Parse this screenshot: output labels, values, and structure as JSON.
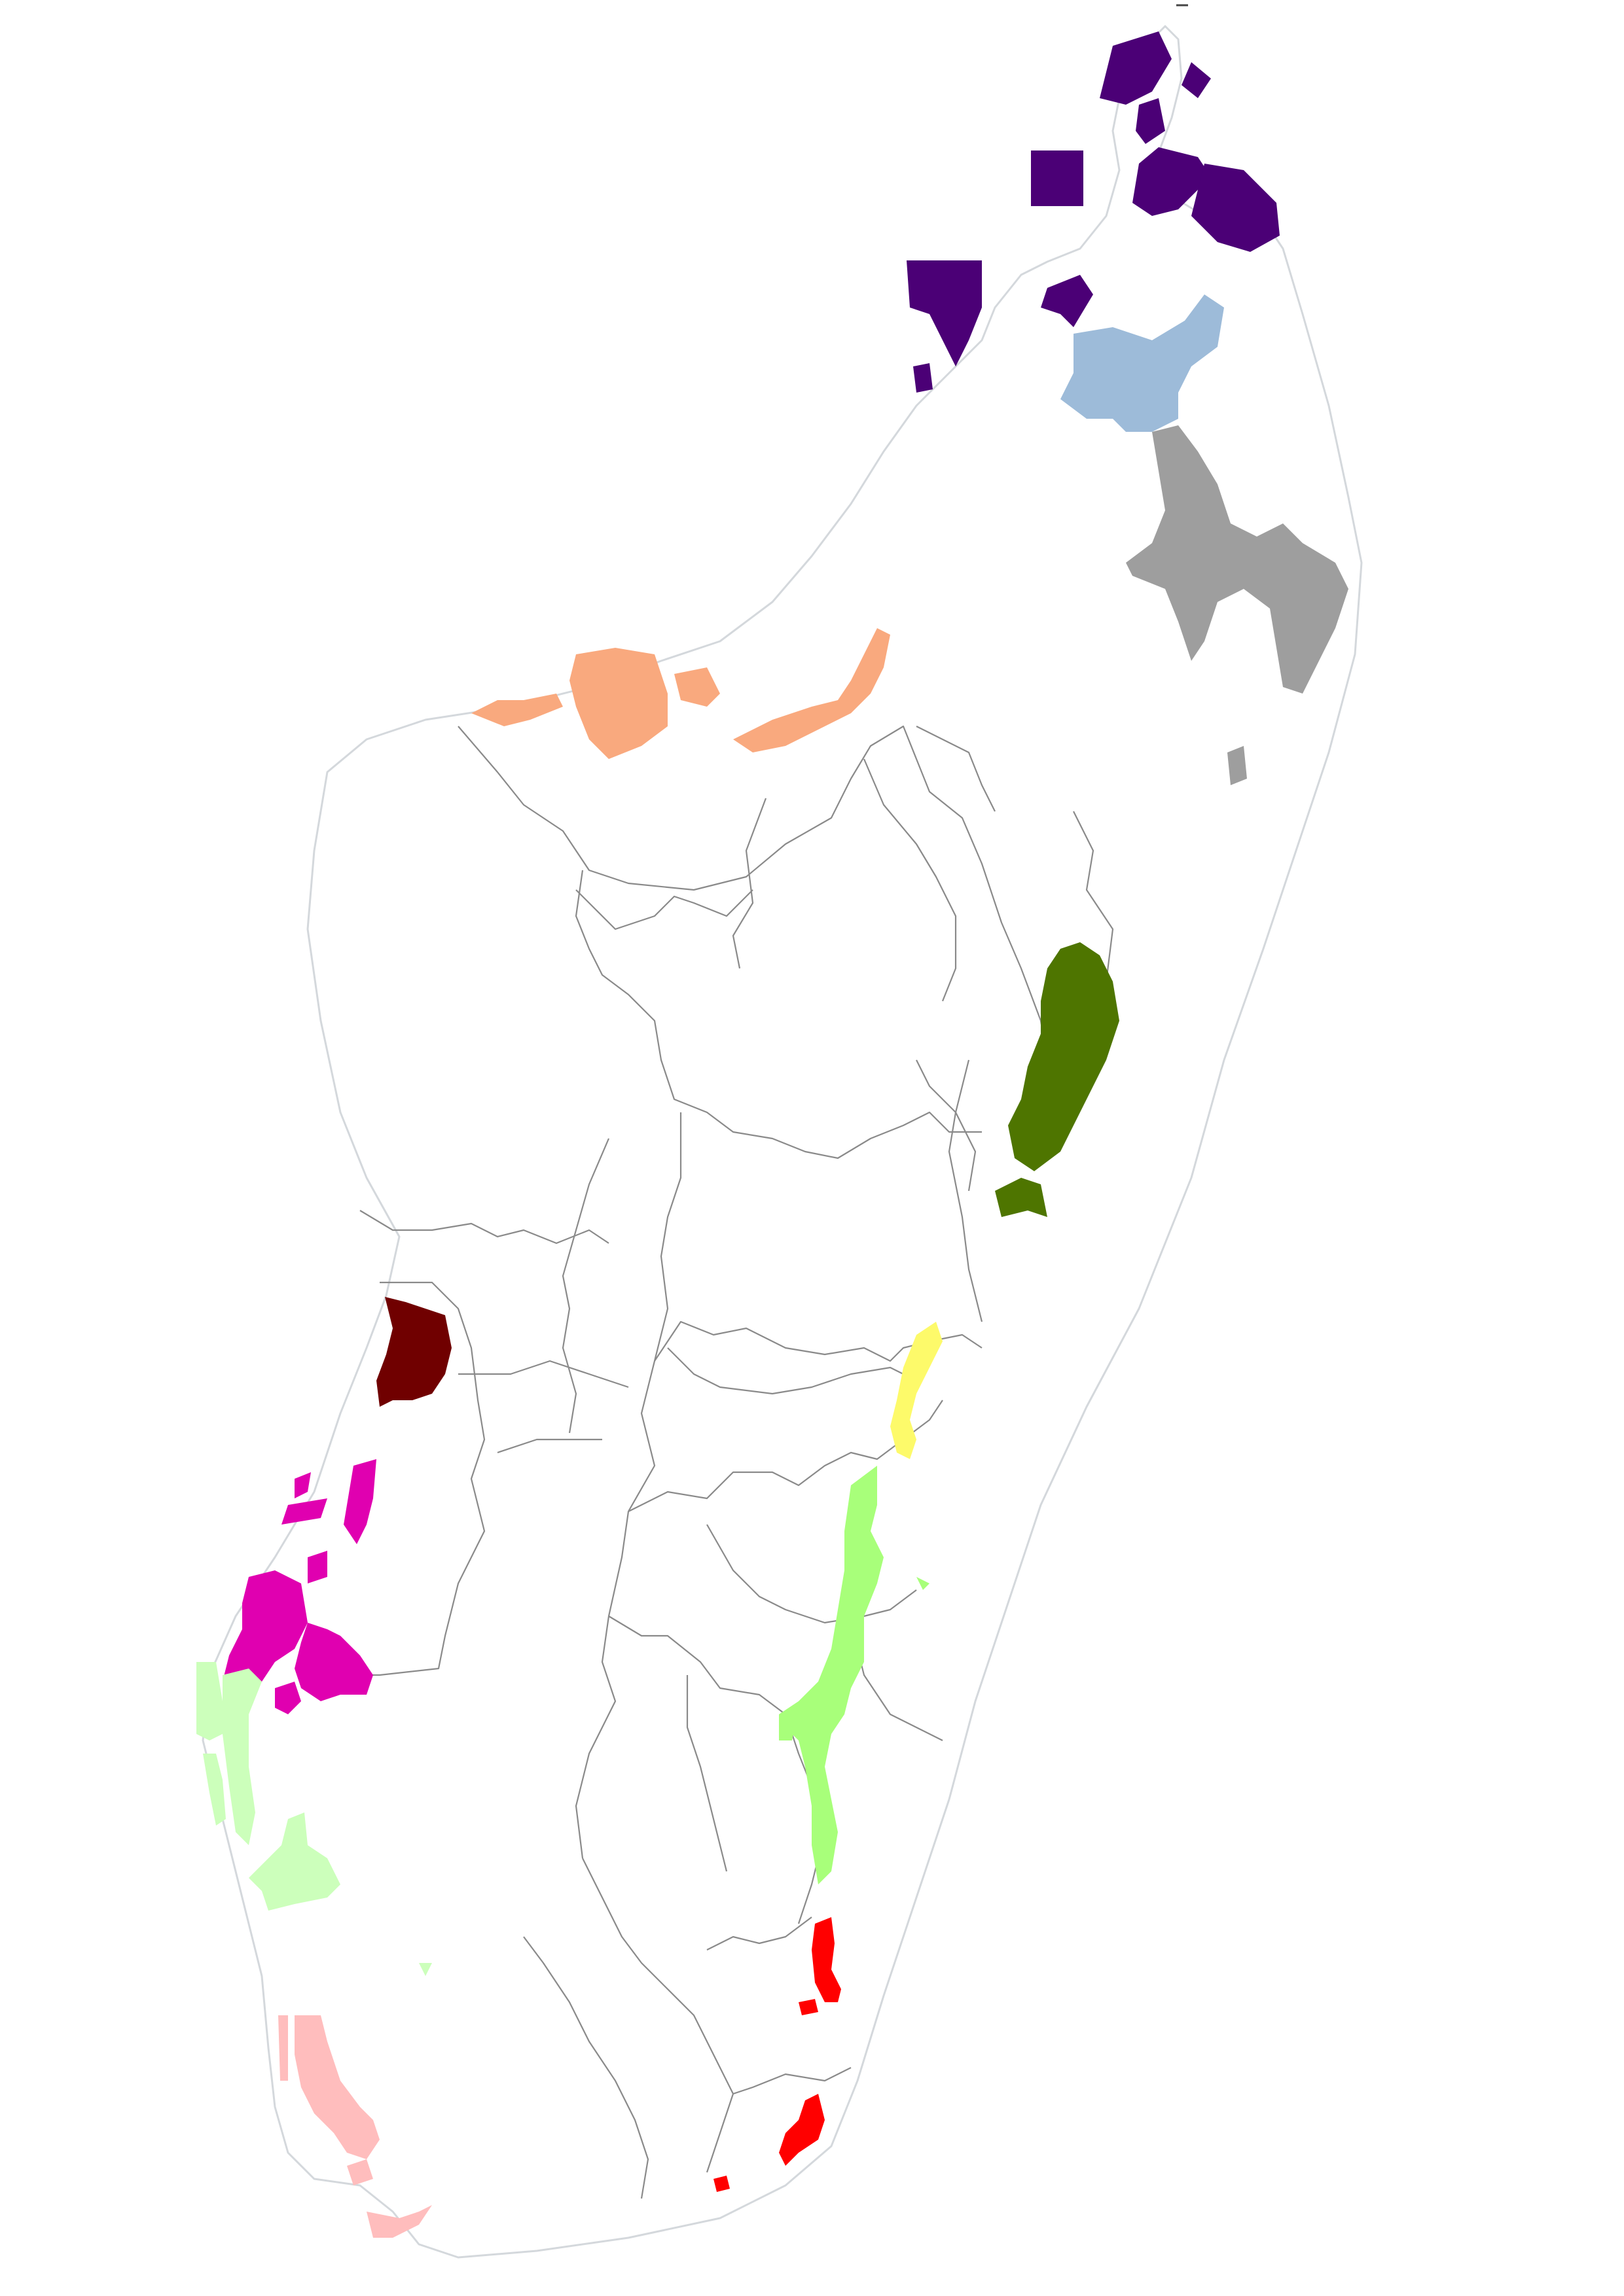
{
  "map": {
    "background_color": "#ffffff",
    "coast_color": "#d4d8dc",
    "boundary_color": "#8a8a8a"
  },
  "zones": [
    {
      "id": "north-tip",
      "color": "#4b0076"
    },
    {
      "id": "north-east-blue",
      "color": "#9dbbd9"
    },
    {
      "id": "north-east-gray",
      "color": "#9e9e9e"
    },
    {
      "id": "north-west-orange",
      "color": "#f9a97e"
    },
    {
      "id": "east-olive",
      "color": "#4e7500"
    },
    {
      "id": "central-west-maroon",
      "color": "#700000"
    },
    {
      "id": "east-yellow",
      "color": "#fdfa6a"
    },
    {
      "id": "west-magenta",
      "color": "#e000b0"
    },
    {
      "id": "south-east-lime",
      "color": "#a8ff7a"
    },
    {
      "id": "south-west-pale-green",
      "color": "#ccffbb"
    },
    {
      "id": "south-east-red",
      "color": "#ff0000"
    },
    {
      "id": "south-west-pink",
      "color": "#ffbdbd"
    }
  ]
}
